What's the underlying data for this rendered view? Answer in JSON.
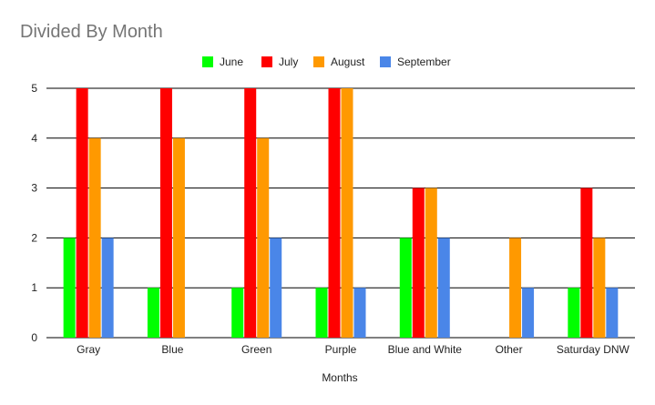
{
  "chart_data": {
    "type": "bar",
    "title": "Divided By Month",
    "xlabel": "Months",
    "ylabel": "",
    "ylim": [
      0,
      5
    ],
    "yticks": [
      0,
      1,
      2,
      3,
      4,
      5
    ],
    "grid": true,
    "legend_position": "top",
    "categories": [
      "Gray",
      "Blue",
      "Green",
      "Purple",
      "Blue and White",
      "Other",
      "Saturday DNW"
    ],
    "series": [
      {
        "name": "June",
        "color": "#00ff00",
        "values": [
          2,
          1,
          1,
          1,
          2,
          0,
          1
        ]
      },
      {
        "name": "July",
        "color": "#ff0000",
        "values": [
          5,
          5,
          5,
          5,
          3,
          0,
          3
        ]
      },
      {
        "name": "August",
        "color": "#ff9900",
        "values": [
          4,
          4,
          4,
          5,
          3,
          2,
          2
        ]
      },
      {
        "name": "September",
        "color": "#4a86e8",
        "values": [
          2,
          0,
          2,
          1,
          2,
          1,
          1
        ]
      }
    ]
  }
}
